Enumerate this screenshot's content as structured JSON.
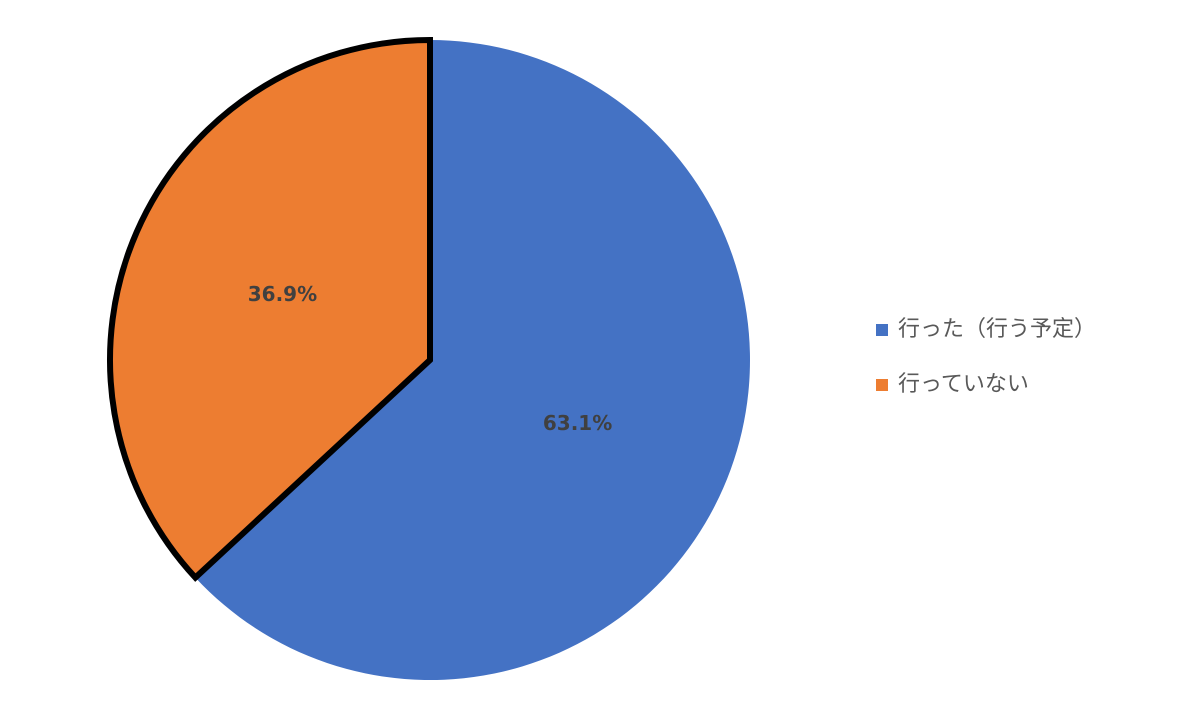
{
  "chart_data": {
    "type": "pie",
    "categories": [
      "行った（行う予定）",
      "行っていない"
    ],
    "values": [
      63.1,
      36.9
    ],
    "value_labels": [
      "63.1%",
      "36.9%"
    ],
    "colors": [
      "#4472c4",
      "#ed7d31"
    ]
  }
}
